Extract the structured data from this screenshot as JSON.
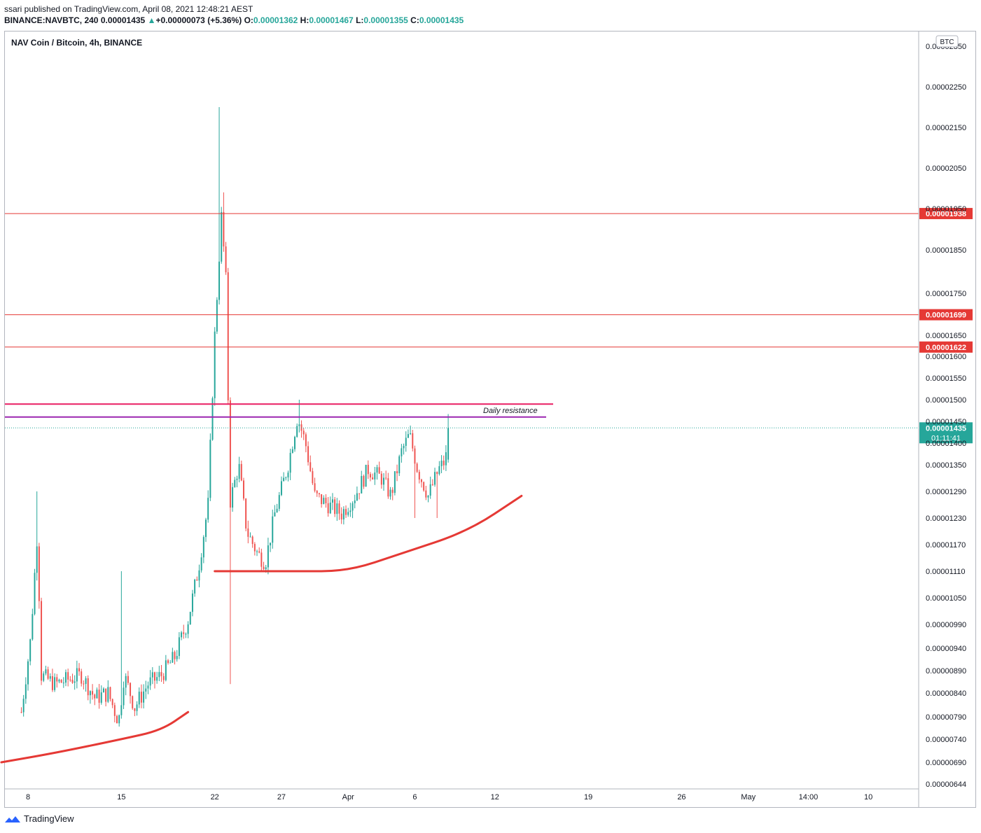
{
  "header": {
    "published_line": "ssari published on TradingView.com, April 08, 2021 12:48:21 AEST",
    "symbol_line": "BINANCE:NAVBTC, 240",
    "last": "0.00001435",
    "change": "+0.00000073 (+5.36%)",
    "o_label": "O:",
    "o_value": "0.00001362",
    "h_label": "H:",
    "h_value": "0.00001467",
    "l_label": "L:",
    "l_value": "0.00001355",
    "c_label": "C:",
    "c_value": "0.00001435"
  },
  "footer": {
    "brand": "TradingView"
  },
  "colors": {
    "up": "#26a69a",
    "down": "#ef5350",
    "hline": "#e53935",
    "resistance_pink": "#e91e63",
    "resistance_purple": "#9c27b0",
    "curve": "#e53935",
    "axis_text": "#131722",
    "price_badge": "#26a69a"
  },
  "chart_data": {
    "type": "candlestick",
    "title": "NAV Coin / Bitcoin, 4h, BINANCE",
    "currency_badge": "BTC",
    "y_ticks": [
      "0.00002350",
      "0.00002250",
      "0.00002150",
      "0.00002050",
      "0.00001950",
      "0.00001850",
      "0.00001750",
      "0.00001650",
      "0.00001600",
      "0.00001550",
      "0.00001500",
      "0.00001450",
      "0.00001400",
      "0.00001350",
      "0.00001290",
      "0.00001230",
      "0.00001170",
      "0.00001110",
      "0.00001050",
      "0.00000990",
      "0.00000940",
      "0.00000890",
      "0.00000840",
      "0.00000790",
      "0.00000740",
      "0.00000690",
      "0.00000644"
    ],
    "x_ticks": [
      "8",
      "15",
      "22",
      "27",
      "Apr",
      "6",
      "12",
      "19",
      "26",
      "May",
      "14:00",
      "10"
    ],
    "horizontal_levels": [
      {
        "value": 1.938e-05,
        "label": "0.00001938"
      },
      {
        "value": 1.699e-05,
        "label": "0.00001699"
      },
      {
        "value": 1.622e-05,
        "label": "0.00001622"
      }
    ],
    "resistance_lines": [
      {
        "value": 1.49e-05,
        "color": "pink",
        "label": ""
      },
      {
        "value": 1.46e-05,
        "color": "purple",
        "label": "Daily resistance"
      }
    ],
    "last_price": {
      "value": 1.435e-05,
      "label": "0.00001435",
      "countdown": "01:11:41"
    },
    "key_candles": [
      {
        "date": "Mar 08",
        "high": 1.29e-05,
        "low": 8.2e-06,
        "close": 9.5e-06
      },
      {
        "date": "Mar 14",
        "low": 7.7e-06,
        "close": 7.9e-06
      },
      {
        "date": "Mar 15",
        "high": 1.11e-05,
        "close": 8.5e-06
      },
      {
        "date": "Mar 21",
        "high": 2.2e-05,
        "close": 1.95e-05
      },
      {
        "date": "Mar 22",
        "low": 8.6e-06,
        "close": 1.25e-05
      },
      {
        "date": "Mar 24",
        "low": 1.1e-05,
        "close": 1.13e-05
      },
      {
        "date": "Mar 27",
        "high": 1.5e-05,
        "close": 1.45e-05
      },
      {
        "date": "Apr 05",
        "high": 1.46e-05,
        "close": 1.4e-05
      },
      {
        "date": "Apr 08",
        "open": 1.362e-05,
        "high": 1.467e-05,
        "low": 1.355e-05,
        "close": 1.435e-05
      }
    ],
    "support_curves": [
      {
        "points": [
          [
            "Mar 06",
            6.9e-06
          ],
          [
            "Mar 10",
            7.1e-06
          ],
          [
            "Mar 15",
            7.4e-06
          ],
          [
            "Mar 18",
            7.6e-06
          ],
          [
            "Mar 20",
            8e-06
          ]
        ]
      },
      {
        "points": [
          [
            "Mar 22",
            1.11e-05
          ],
          [
            "Mar 28",
            1.11e-05
          ],
          [
            "Apr 01",
            1.11e-05
          ],
          [
            "Apr 05",
            1.15e-05
          ],
          [
            "Apr 10",
            1.2e-05
          ],
          [
            "Apr 14",
            1.28e-05
          ]
        ]
      }
    ]
  }
}
